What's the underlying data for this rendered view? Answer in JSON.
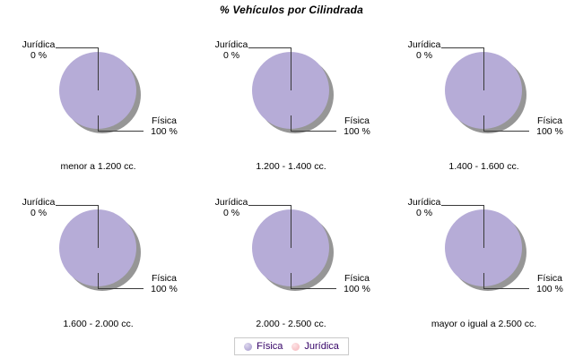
{
  "title": "% Vehículos por Cilindrada",
  "colors": {
    "fisica": "#b6acd7",
    "juridica": "#f8c5c9",
    "shadow": "#969696",
    "line": "#3a3a3a",
    "legend_text": "#330066",
    "legend_border": "#c9c9c9"
  },
  "legend": {
    "items": [
      {
        "label": "Física",
        "color": "#b6acd7"
      },
      {
        "label": "Jurídica",
        "color": "#f8c5c9"
      }
    ]
  },
  "chart_data": [
    {
      "type": "pie",
      "caption": "menor a 1.200 cc.",
      "categories": [
        "Física",
        "Jurídica"
      ],
      "values": [
        100,
        0
      ],
      "slice_labels": {
        "fisica": {
          "name": "Física",
          "value_label": "100 %"
        },
        "juridica": {
          "name": "Jurídica",
          "value_label": "0 %"
        }
      }
    },
    {
      "type": "pie",
      "caption": "1.200 - 1.400 cc.",
      "categories": [
        "Física",
        "Jurídica"
      ],
      "values": [
        100,
        0
      ],
      "slice_labels": {
        "fisica": {
          "name": "Física",
          "value_label": "100 %"
        },
        "juridica": {
          "name": "Jurídica",
          "value_label": "0 %"
        }
      }
    },
    {
      "type": "pie",
      "caption": "1.400 - 1.600 cc.",
      "categories": [
        "Física",
        "Jurídica"
      ],
      "values": [
        100,
        0
      ],
      "slice_labels": {
        "fisica": {
          "name": "Física",
          "value_label": "100 %"
        },
        "juridica": {
          "name": "Jurídica",
          "value_label": "0 %"
        }
      }
    },
    {
      "type": "pie",
      "caption": "1.600 - 2.000 cc.",
      "categories": [
        "Física",
        "Jurídica"
      ],
      "values": [
        100,
        0
      ],
      "slice_labels": {
        "fisica": {
          "name": "Física",
          "value_label": "100 %"
        },
        "juridica": {
          "name": "Jurídica",
          "value_label": "0 %"
        }
      }
    },
    {
      "type": "pie",
      "caption": "2.000 - 2.500 cc.",
      "categories": [
        "Física",
        "Jurídica"
      ],
      "values": [
        100,
        0
      ],
      "slice_labels": {
        "fisica": {
          "name": "Física",
          "value_label": "100 %"
        },
        "juridica": {
          "name": "Jurídica",
          "value_label": "0 %"
        }
      }
    },
    {
      "type": "pie",
      "caption": "mayor o igual a 2.500 cc.",
      "categories": [
        "Física",
        "Jurídica"
      ],
      "values": [
        100,
        0
      ],
      "slice_labels": {
        "fisica": {
          "name": "Física",
          "value_label": "100 %"
        },
        "juridica": {
          "name": "Jurídica",
          "value_label": "0 %"
        }
      }
    }
  ]
}
